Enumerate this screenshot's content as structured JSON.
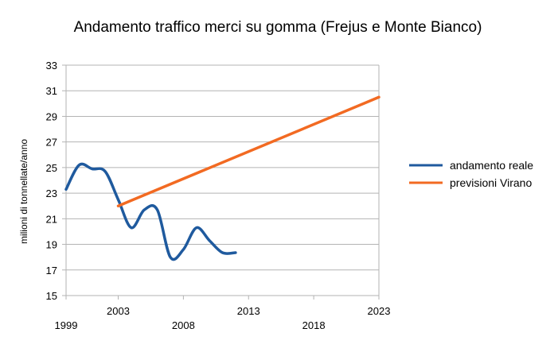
{
  "chart_data": {
    "type": "line",
    "title": "Andamento traffico merci su gomma (Frejus e Monte Bianco)",
    "xlabel": "",
    "ylabel": "milioni di tonnellate/anno",
    "xlim": [
      1999,
      2023
    ],
    "ylim": [
      15,
      33
    ],
    "y_ticks": [
      15,
      17,
      19,
      21,
      23,
      25,
      27,
      29,
      31,
      33
    ],
    "x_tick_labels": [
      "1999",
      "2003",
      "2008",
      "2013",
      "2018",
      "2023"
    ],
    "grid": "horizontal",
    "legend_position": "right",
    "series": [
      {
        "name": "andamento reale",
        "color": "#1f5a9e",
        "smooth": true,
        "x": [
          1999,
          2000,
          2001,
          2002,
          2003,
          2004,
          2005,
          2006,
          2007,
          2008,
          2009,
          2010,
          2011,
          2012
        ],
        "y": [
          23.3,
          25.2,
          24.9,
          24.7,
          22.5,
          20.3,
          21.7,
          21.7,
          18.0,
          18.6,
          20.3,
          19.3,
          18.35,
          18.35
        ]
      },
      {
        "name": "previsioni Virano",
        "color": "#f26a22",
        "smooth": false,
        "x": [
          2003,
          2023
        ],
        "y": [
          22.0,
          30.5
        ]
      }
    ]
  }
}
